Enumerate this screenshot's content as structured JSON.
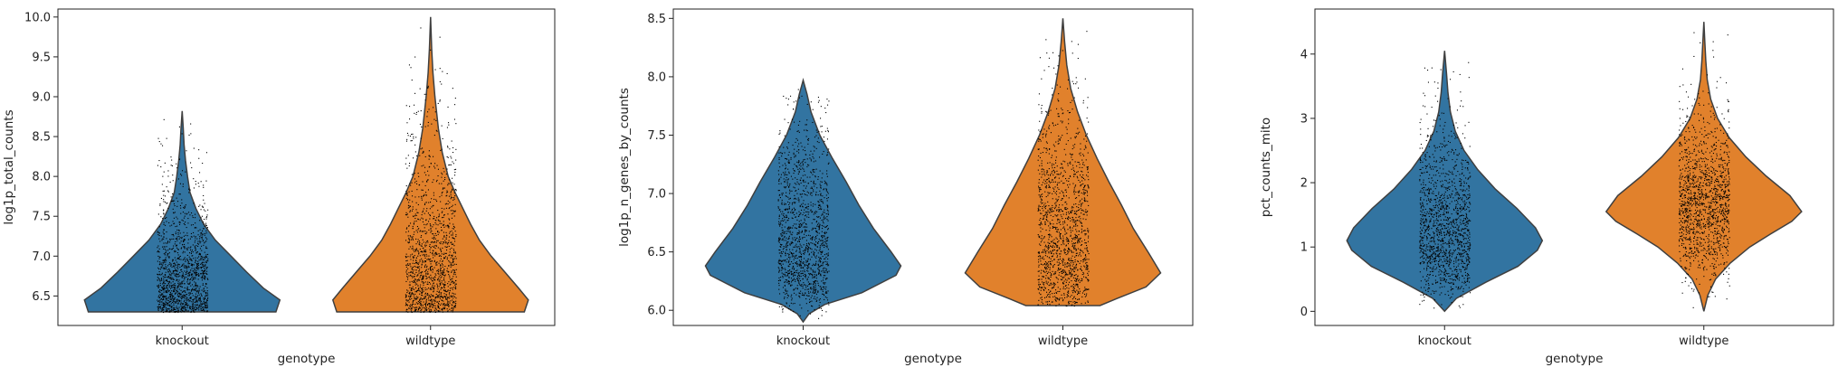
{
  "chart_data": [
    {
      "type": "violin",
      "xlabel": "genotype",
      "ylabel": "log1p_total_counts",
      "categories": [
        "knockout",
        "wildtype"
      ],
      "colors": [
        "#3274a1",
        "#e1812c"
      ],
      "ylim": [
        6.13,
        10.1
      ],
      "yticks": [
        6.5,
        7.0,
        7.5,
        8.0,
        8.5,
        9.0,
        9.5,
        10.0
      ],
      "ytick_labels": [
        "6.5",
        "7.0",
        "7.5",
        "8.0",
        "8.5",
        "9.0",
        "9.5",
        "10.0"
      ],
      "series": [
        {
          "category": "knockout",
          "min": 6.3,
          "max": 8.82,
          "profile": [
            [
              6.3,
              0.96
            ],
            [
              6.45,
              1.0
            ],
            [
              6.6,
              0.83
            ],
            [
              6.8,
              0.66
            ],
            [
              7.0,
              0.5
            ],
            [
              7.2,
              0.34
            ],
            [
              7.4,
              0.22
            ],
            [
              7.6,
              0.14
            ],
            [
              7.8,
              0.08
            ],
            [
              8.0,
              0.055
            ],
            [
              8.2,
              0.035
            ],
            [
              8.4,
              0.02
            ],
            [
              8.6,
              0.012
            ],
            [
              8.82,
              0.0
            ]
          ]
        },
        {
          "category": "wildtype",
          "min": 6.3,
          "max": 10.0,
          "profile": [
            [
              6.3,
              0.96
            ],
            [
              6.45,
              1.0
            ],
            [
              6.6,
              0.9
            ],
            [
              6.8,
              0.76
            ],
            [
              7.0,
              0.62
            ],
            [
              7.2,
              0.5
            ],
            [
              7.4,
              0.41
            ],
            [
              7.6,
              0.33
            ],
            [
              7.8,
              0.25
            ],
            [
              8.0,
              0.18
            ],
            [
              8.3,
              0.12
            ],
            [
              8.6,
              0.08
            ],
            [
              9.0,
              0.045
            ],
            [
              9.3,
              0.025
            ],
            [
              9.6,
              0.012
            ],
            [
              10.0,
              0.0
            ]
          ]
        }
      ]
    },
    {
      "type": "violin",
      "xlabel": "genotype",
      "ylabel": "log1p_n_genes_by_counts",
      "categories": [
        "knockout",
        "wildtype"
      ],
      "colors": [
        "#3274a1",
        "#e1812c"
      ],
      "ylim": [
        5.87,
        8.58
      ],
      "yticks": [
        6.0,
        6.5,
        7.0,
        7.5,
        8.0,
        8.5
      ],
      "ytick_labels": [
        "6.0",
        "6.5",
        "7.0",
        "7.5",
        "8.0",
        "8.5"
      ],
      "series": [
        {
          "category": "knockout",
          "min": 5.9,
          "max": 7.97,
          "profile": [
            [
              5.9,
              0.0
            ],
            [
              5.97,
              0.06
            ],
            [
              6.05,
              0.22
            ],
            [
              6.15,
              0.6
            ],
            [
              6.3,
              0.95
            ],
            [
              6.38,
              1.0
            ],
            [
              6.5,
              0.9
            ],
            [
              6.7,
              0.72
            ],
            [
              6.9,
              0.57
            ],
            [
              7.1,
              0.44
            ],
            [
              7.3,
              0.3
            ],
            [
              7.5,
              0.17
            ],
            [
              7.7,
              0.08
            ],
            [
              7.85,
              0.04
            ],
            [
              7.97,
              0.0
            ]
          ]
        },
        {
          "category": "wildtype",
          "min": 6.04,
          "max": 8.5,
          "profile": [
            [
              6.04,
              0.38
            ],
            [
              6.1,
              0.55
            ],
            [
              6.2,
              0.85
            ],
            [
              6.32,
              1.0
            ],
            [
              6.5,
              0.87
            ],
            [
              6.7,
              0.72
            ],
            [
              6.9,
              0.6
            ],
            [
              7.1,
              0.47
            ],
            [
              7.3,
              0.35
            ],
            [
              7.5,
              0.24
            ],
            [
              7.7,
              0.15
            ],
            [
              7.9,
              0.08
            ],
            [
              8.1,
              0.04
            ],
            [
              8.3,
              0.018
            ],
            [
              8.5,
              0.0
            ]
          ]
        }
      ]
    },
    {
      "type": "violin",
      "xlabel": "genotype",
      "ylabel": "pct_counts_mito",
      "categories": [
        "knockout",
        "wildtype"
      ],
      "colors": [
        "#3274a1",
        "#e1812c"
      ],
      "ylim": [
        -0.22,
        4.7
      ],
      "yticks": [
        0,
        1,
        2,
        3,
        4
      ],
      "ytick_labels": [
        "0",
        "1",
        "2",
        "3",
        "4"
      ],
      "series": [
        {
          "category": "knockout",
          "min": 0.0,
          "max": 4.05,
          "profile": [
            [
              0.0,
              0.0
            ],
            [
              0.2,
              0.12
            ],
            [
              0.45,
              0.42
            ],
            [
              0.7,
              0.75
            ],
            [
              0.95,
              0.95
            ],
            [
              1.1,
              1.0
            ],
            [
              1.3,
              0.93
            ],
            [
              1.6,
              0.74
            ],
            [
              1.9,
              0.52
            ],
            [
              2.2,
              0.34
            ],
            [
              2.5,
              0.2
            ],
            [
              2.8,
              0.11
            ],
            [
              3.1,
              0.06
            ],
            [
              3.4,
              0.035
            ],
            [
              3.7,
              0.02
            ],
            [
              4.05,
              0.0
            ]
          ]
        },
        {
          "category": "wildtype",
          "min": 0.0,
          "max": 4.5,
          "profile": [
            [
              0.0,
              0.0
            ],
            [
              0.25,
              0.04
            ],
            [
              0.5,
              0.12
            ],
            [
              0.75,
              0.27
            ],
            [
              1.0,
              0.47
            ],
            [
              1.2,
              0.68
            ],
            [
              1.4,
              0.9
            ],
            [
              1.55,
              1.0
            ],
            [
              1.8,
              0.88
            ],
            [
              2.1,
              0.64
            ],
            [
              2.4,
              0.43
            ],
            [
              2.7,
              0.26
            ],
            [
              3.0,
              0.14
            ],
            [
              3.3,
              0.07
            ],
            [
              3.6,
              0.035
            ],
            [
              3.9,
              0.02
            ],
            [
              4.2,
              0.01
            ],
            [
              4.5,
              0.0
            ]
          ]
        }
      ]
    }
  ]
}
